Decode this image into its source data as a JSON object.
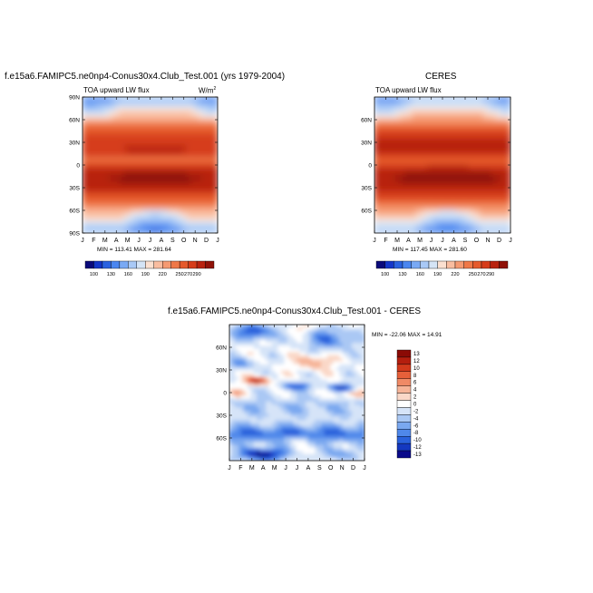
{
  "chart_data": [
    {
      "type": "heatmap",
      "title": "f.e15a6.FAMIPC5.ne0np4-Conus30x4.Club_Test.001 (yrs 1979-2004)",
      "subtitle": "TOA upward LW flux",
      "units": "W/m",
      "units_sup": "2",
      "min_max": "MIN = 113.41  MAX = 281.64",
      "x_ticks": [
        "J",
        "F",
        "M",
        "A",
        "M",
        "J",
        "J",
        "A",
        "S",
        "O",
        "N",
        "D",
        "J"
      ],
      "y_ticks": [
        "90N",
        "60N",
        "30N",
        "0",
        "30S",
        "60S",
        "90S"
      ],
      "colorbar_ticks": [
        "100",
        "130",
        "160",
        "190",
        "220",
        "250",
        "270",
        "290"
      ]
    },
    {
      "type": "heatmap",
      "title": "CERES",
      "subtitle": "TOA upward LW flux",
      "min_max": "MIN = 117.45  MAX = 281.60",
      "x_ticks": [
        "J",
        "F",
        "M",
        "A",
        "M",
        "J",
        "J",
        "A",
        "S",
        "O",
        "N",
        "D",
        "J"
      ],
      "y_ticks": [
        "60N",
        "30N",
        "0",
        "30S",
        "60S"
      ],
      "colorbar_ticks": [
        "100",
        "130",
        "160",
        "190",
        "220",
        "250",
        "270",
        "290"
      ]
    },
    {
      "type": "heatmap",
      "title": "f.e15a6.FAMIPC5.ne0np4-Conus30x4.Club_Test.001 - CERES",
      "min_max": "MIN = -22.06  MAX =  14.91",
      "x_ticks": [
        "J",
        "F",
        "M",
        "A",
        "M",
        "J",
        "J",
        "A",
        "S",
        "O",
        "N",
        "D",
        "J"
      ],
      "y_ticks": [
        "60N",
        "30N",
        "0",
        "30S",
        "60S"
      ],
      "colorbar_ticks": [
        "13",
        "12",
        "10",
        "8",
        "6",
        "4",
        "2",
        "0",
        "-2",
        "-4",
        "-6",
        "-8",
        "-10",
        "-12",
        "-13"
      ]
    }
  ],
  "colors": {
    "sequential": [
      "#0a0a7a",
      "#1436c8",
      "#2a62e0",
      "#4a86f0",
      "#79a9f4",
      "#a9c9f6",
      "#d4e4f6",
      "#fbe0d0",
      "#f9bda0",
      "#f59a72",
      "#ef7848",
      "#e55a2c",
      "#d63c1a",
      "#b8220f",
      "#901208"
    ],
    "diverging": [
      "#8b0a05",
      "#b41e0e",
      "#d23a1c",
      "#e6603a",
      "#f08a66",
      "#f6b498",
      "#fad8c8",
      "#ffffff",
      "#d6e4f8",
      "#aac8f4",
      "#7aa8f0",
      "#4f88ea",
      "#2a62dc",
      "#1438c0",
      "#0a0a8a"
    ]
  }
}
